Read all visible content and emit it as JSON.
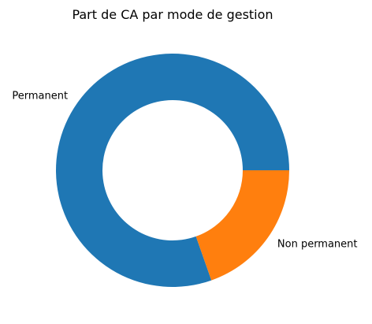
{
  "chart_data": {
    "type": "pie",
    "title": "Part de CA par mode de gestion",
    "donut": true,
    "start_angle_deg": 0,
    "direction": "counterclockwise",
    "slices": [
      {
        "label": "Permanent",
        "value": 80.4,
        "color": "#1f77b4"
      },
      {
        "label": "Non permanent",
        "value": 19.6,
        "color": "#ff7f0e"
      }
    ]
  }
}
